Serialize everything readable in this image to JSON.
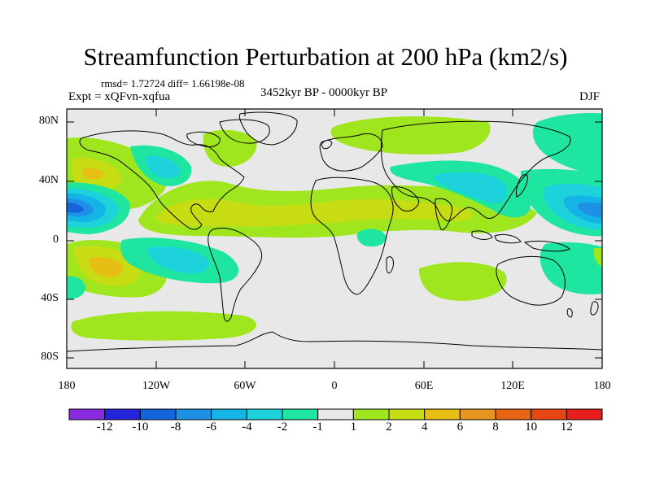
{
  "title": "Streamfunction Perturbation at 200 hPa (km2/s)",
  "stats_text": "rmsd= 1.72724 diff= 1.66198e-08",
  "experiment_text": "Expt = xQFvn-xqfua",
  "period_text": "3452kyr BP - 0000kyr BP",
  "season_text": "DJF",
  "lat_labels": [
    "80N",
    "40N",
    "0",
    "40S",
    "80S"
  ],
  "lon_labels": [
    "180",
    "120W",
    "60W",
    "0",
    "60E",
    "120E",
    "180"
  ],
  "colorbar": {
    "labels": [
      "-12",
      "-10",
      "-8",
      "-6",
      "-4",
      "-2",
      "-1",
      "1",
      "2",
      "4",
      "6",
      "8",
      "10",
      "12"
    ],
    "colors": [
      "#8a2be2",
      "#2424dc",
      "#1464dc",
      "#1e90e6",
      "#14b4e6",
      "#1ed2dc",
      "#1ee6a0",
      "#e8e8e8",
      "#a0e61e",
      "#c8dc14",
      "#e6be14",
      "#e6961e",
      "#e66414",
      "#e64614",
      "#e61e1e"
    ]
  }
}
